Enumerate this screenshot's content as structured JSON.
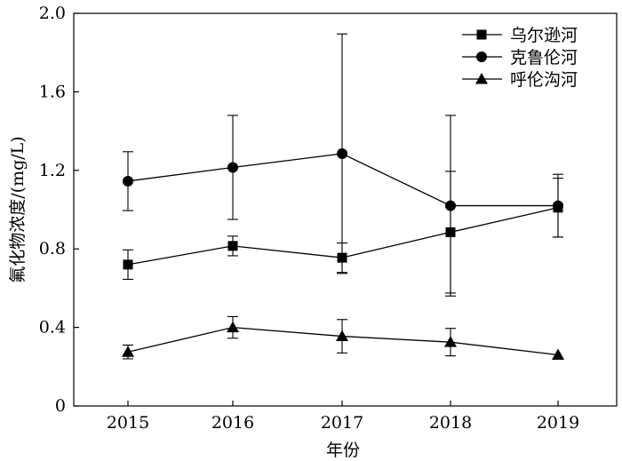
{
  "chart_data": {
    "type": "line",
    "xlabel": "年份",
    "ylabel": "氟化物浓度/(mg/L)",
    "x": [
      2015,
      2016,
      2017,
      2018,
      2019
    ],
    "x_ticks": [
      "2015",
      "2016",
      "2017",
      "2018",
      "2019"
    ],
    "ylim": [
      0,
      2.0
    ],
    "y_ticks": [
      "0",
      "0.4",
      "0.8",
      "1.2",
      "1.6",
      "2.0"
    ],
    "grid": false,
    "legend_position": "top-right",
    "series": [
      {
        "name": "乌尔逊河",
        "marker": "square",
        "values": [
          0.72,
          0.815,
          0.755,
          0.885,
          1.01
        ],
        "errors": [
          0.075,
          0.05,
          0.075,
          0.31,
          0.15
        ]
      },
      {
        "name": "克鲁伦河",
        "marker": "circle",
        "values": [
          1.145,
          1.215,
          1.285,
          1.02,
          1.02
        ],
        "errors": [
          0.15,
          0.265,
          0.61,
          0.46,
          0.16
        ]
      },
      {
        "name": "呼伦沟河",
        "marker": "triangle",
        "values": [
          0.275,
          0.4,
          0.355,
          0.325,
          0.26
        ],
        "errors": [
          0.035,
          0.055,
          0.085,
          0.07,
          0.0
        ]
      }
    ]
  }
}
